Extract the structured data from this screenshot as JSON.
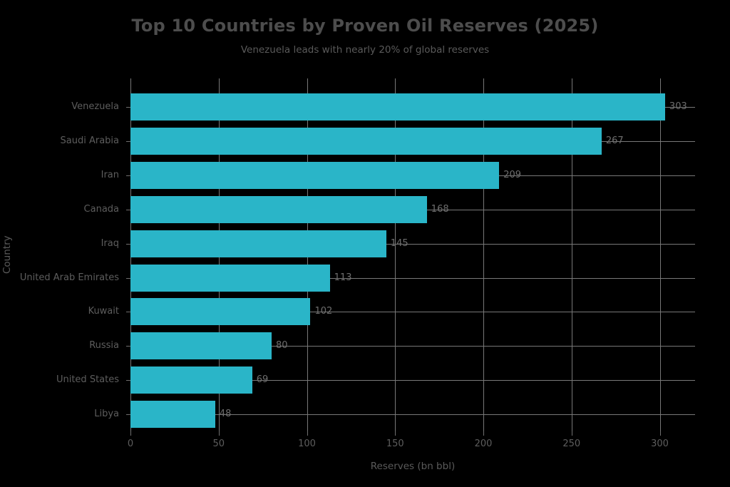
{
  "chart_data": {
    "type": "bar",
    "orientation": "horizontal",
    "title": "Top 10 Countries by Proven Oil Reserves (2025)",
    "subtitle": "Venezuela leads with nearly 20% of global reserves",
    "xlabel": "Reserves (bn bbl)",
    "ylabel": "Country",
    "categories": [
      "Venezuela",
      "Saudi Arabia",
      "Iran",
      "Canada",
      "Iraq",
      "United Arab Emirates",
      "Kuwait",
      "Russia",
      "United States",
      "Libya"
    ],
    "values": [
      303,
      267,
      209,
      168,
      145,
      113,
      102,
      80,
      69,
      48
    ],
    "x_ticks": [
      0,
      50,
      100,
      150,
      200,
      250,
      300
    ],
    "xlim": [
      0,
      320
    ],
    "grid": true,
    "legend": "none",
    "colors": {
      "background": "#000000",
      "bar": "#2ab5c8",
      "gridline": "#787878",
      "tick_text": "#5d5d5d",
      "value_text": "#6e6e6e",
      "title_text": "#4d4d4d",
      "subtitle_text": "#5a5a5a"
    }
  }
}
